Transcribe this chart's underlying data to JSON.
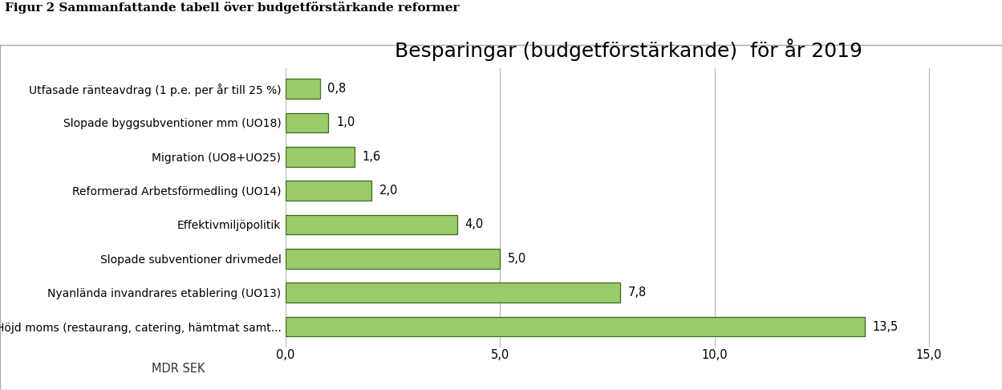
{
  "title": "Besparingar (budgetförstärkande)  för år 2019",
  "categories": [
    "Höjd moms (restaurang, catering, hämtmat samt...",
    "Nyanlända invandrares etablering (UO13)",
    "Slopade subventioner drivmedel",
    "Effektivmiljöpolitik",
    "Reformerad Arbetsförmedling (UO14)",
    "Migration (UO8+UO25)",
    "Slopade byggsubventioner mm (UO18)",
    "Utfasade ränteavdrag (1 p.e. per år till 25 %)"
  ],
  "values": [
    13.5,
    7.8,
    5.0,
    4.0,
    2.0,
    1.6,
    1.0,
    0.8
  ],
  "bar_color_face": "#9aca6a",
  "bar_color_edge": "#3a6e1f",
  "bar_color_dark": "#4a7c2f",
  "xlabel": "MDR SEK",
  "xlim": [
    0,
    16.0
  ],
  "xticks": [
    0.0,
    5.0,
    10.0,
    15.0
  ],
  "xtick_labels": [
    "0,0",
    "5,0",
    "10,0",
    "15,0"
  ],
  "grid_color": "#bbbbbb",
  "background_color": "#ffffff",
  "title_fontsize": 18,
  "label_fontsize": 10,
  "value_fontsize": 10.5,
  "xlabel_fontsize": 9.5,
  "figure_header": "Figur 2 Sammanfattande tabell över budgetförstärkande reformer",
  "header_fontsize": 11,
  "header_line_color": "#000000",
  "chart_border_color": "#aaaaaa"
}
